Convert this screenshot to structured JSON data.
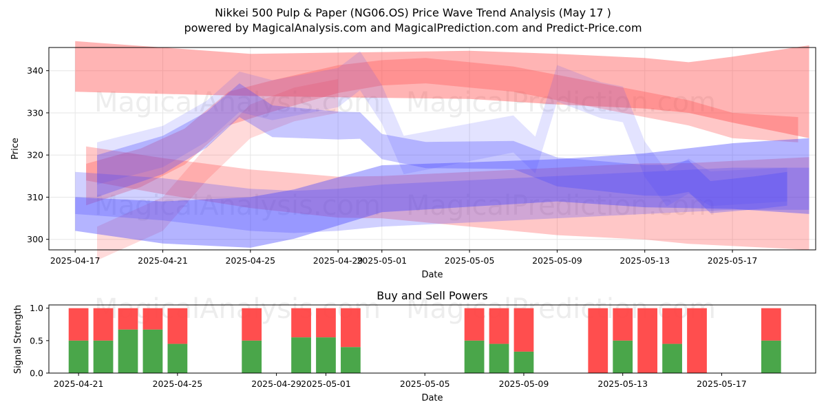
{
  "title_line1": "Nikkei 500 Pulp & Paper (NG06.OS) Price Wave Trend Analysis (May 17 )",
  "title_line2": "powered by MagicalAnalysis.com and MagicalPrediction.com and Predict-Price.com",
  "watermarks": [
    "MagicalAnalysis.com",
    "MagicalPrediction.com"
  ],
  "colors": {
    "red": "#ff4444",
    "blue": "#4444ff",
    "green": "#4aa64a",
    "grid": "#e6e6e6"
  },
  "chart_data": [
    {
      "type": "area",
      "title": "",
      "xlabel": "Date",
      "ylabel": "Price",
      "ylim": [
        297.5,
        345.5
      ],
      "xlim": [
        -1.2,
        33.8
      ],
      "grid": true,
      "date_origin": "2025-04-17",
      "x_ticks": [
        {
          "d": 0,
          "label": "2025-04-17"
        },
        {
          "d": 4,
          "label": "2025-04-21"
        },
        {
          "d": 8,
          "label": "2025-04-25"
        },
        {
          "d": 12,
          "label": "2025-04-29"
        },
        {
          "d": 14,
          "label": "2025-05-01"
        },
        {
          "d": 18,
          "label": "2025-05-05"
        },
        {
          "d": 22,
          "label": "2025-05-09"
        },
        {
          "d": 26,
          "label": "2025-05-13"
        },
        {
          "d": 30,
          "label": "2025-05-17"
        }
      ],
      "y_ticks": [
        300,
        310,
        320,
        330,
        340
      ],
      "series": [
        {
          "name": "red-wave-upper",
          "color": "red",
          "alpha": 0.4,
          "points": [
            [
              0,
              341
            ],
            [
              4,
              340
            ],
            [
              8,
              339
            ],
            [
              12,
              339
            ],
            [
              14,
              339
            ],
            [
              18,
              339
            ],
            [
              20,
              338.5
            ],
            [
              22,
              338
            ],
            [
              26,
              337
            ],
            [
              28,
              336
            ],
            [
              30,
              335.5
            ],
            [
              33.5,
              335
            ]
          ],
          "width": [
            [
              0,
              6
            ],
            [
              8,
              5
            ],
            [
              22,
              6
            ],
            [
              28,
              6
            ],
            [
              33.5,
              11
            ]
          ]
        },
        {
          "name": "red-wave-mid",
          "color": "red",
          "alpha": 0.3,
          "points": [
            [
              0.5,
              313
            ],
            [
              3,
              317
            ],
            [
              5,
              322
            ],
            [
              7,
              331
            ],
            [
              9,
              334
            ],
            [
              12,
              338
            ],
            [
              14,
              339.5
            ],
            [
              16,
              340
            ],
            [
              18,
              339
            ],
            [
              20,
              338
            ],
            [
              22,
              336
            ],
            [
              24,
              334
            ],
            [
              26,
              332
            ],
            [
              28,
              330
            ],
            [
              30,
              327
            ],
            [
              33,
              326
            ]
          ],
          "width": [
            [
              0,
              5
            ],
            [
              14,
              3
            ],
            [
              33,
              3
            ]
          ]
        },
        {
          "name": "red-wave-lower",
          "color": "red",
          "alpha": 0.3,
          "points": [
            [
              0.5,
              318
            ],
            [
              4,
              315
            ],
            [
              8,
              312
            ],
            [
              12,
              310
            ],
            [
              14,
              310
            ],
            [
              18,
              309.5
            ],
            [
              22,
              309
            ],
            [
              26,
              309
            ],
            [
              28,
              308.5
            ],
            [
              30,
              308.5
            ],
            [
              33.5,
              308.5
            ]
          ],
          "width": [
            [
              0,
              4
            ],
            [
              14,
              5
            ],
            [
              22,
              8
            ],
            [
              33.5,
              11
            ]
          ]
        },
        {
          "name": "red-rise",
          "color": "red",
          "alpha": 0.2,
          "points": [
            [
              1,
              299
            ],
            [
              4,
              306
            ],
            [
              6,
              318
            ],
            [
              8,
              328
            ],
            [
              10,
              332
            ],
            [
              12,
              334
            ]
          ],
          "width": [
            [
              1,
              4
            ],
            [
              12,
              4
            ]
          ]
        },
        {
          "name": "blue-wave-flat",
          "color": "blue",
          "alpha": 0.4,
          "points": [
            [
              0,
              306
            ],
            [
              4,
              304
            ],
            [
              8,
              304
            ],
            [
              10,
              306
            ],
            [
              12,
              309
            ],
            [
              14,
              312
            ],
            [
              18,
              313
            ],
            [
              22,
              314
            ],
            [
              26,
              314
            ],
            [
              30,
              315
            ],
            [
              33.5,
              315
            ]
          ],
          "width": [
            [
              0,
              4
            ],
            [
              8,
              6
            ],
            [
              22,
              5
            ],
            [
              33.5,
              9
            ]
          ]
        },
        {
          "name": "blue-wave-main",
          "color": "blue",
          "alpha": 0.3,
          "points": [
            [
              1,
              315
            ],
            [
              4,
              320
            ],
            [
              6,
              326
            ],
            [
              7.5,
              333
            ],
            [
              9,
              328
            ],
            [
              12,
              327
            ],
            [
              13,
              327
            ],
            [
              14,
              322
            ],
            [
              16,
              320
            ],
            [
              18,
              320
            ],
            [
              20,
              320
            ],
            [
              22,
              316
            ],
            [
              24,
              315
            ],
            [
              26,
              314
            ],
            [
              27,
              314
            ],
            [
              28,
              315
            ],
            [
              29,
              310
            ],
            [
              31,
              311
            ],
            [
              32.5,
              312
            ]
          ],
          "width": [
            [
              1,
              5
            ],
            [
              14,
              3
            ],
            [
              32.5,
              4
            ]
          ]
        },
        {
          "name": "blue-wave-alt",
          "color": "blue",
          "alpha": 0.15,
          "points": [
            [
              1,
              318
            ],
            [
              4,
              322
            ],
            [
              6,
              328
            ],
            [
              7.5,
              335
            ],
            [
              9,
              333
            ],
            [
              12,
              336
            ],
            [
              13,
              340
            ],
            [
              14,
              332
            ],
            [
              15,
              320
            ],
            [
              18,
              323
            ],
            [
              20,
              325
            ],
            [
              21,
              320
            ],
            [
              22,
              337
            ],
            [
              24,
              333
            ],
            [
              25,
              332
            ],
            [
              26,
              319
            ],
            [
              27,
              312
            ],
            [
              28,
              315
            ],
            [
              29,
              312
            ],
            [
              32.5,
              313
            ]
          ],
          "width": [
            [
              1,
              5
            ],
            [
              32.5,
              4
            ]
          ]
        },
        {
          "name": "purple-band",
          "color": "blue",
          "alpha": 0.25,
          "points": [
            [
              0,
              311
            ],
            [
              4,
              309.5
            ],
            [
              8,
              307
            ],
            [
              10,
              306.5
            ],
            [
              12,
              307
            ],
            [
              14,
              308
            ],
            [
              18,
              309
            ],
            [
              22,
              310
            ],
            [
              26,
              311
            ],
            [
              30,
              312
            ],
            [
              33.5,
              312
            ]
          ],
          "width": [
            [
              0,
              5
            ],
            [
              33.5,
              5
            ]
          ]
        }
      ]
    },
    {
      "type": "bar",
      "title": "Buy and Sell Powers",
      "xlabel": "Date",
      "ylabel": "Signal Strength",
      "ylim": [
        0,
        1.05
      ],
      "xlim": [
        -0.2,
        30.8
      ],
      "grid": false,
      "date_origin": "2025-04-20",
      "x_ticks": [
        {
          "d": 1,
          "label": "2025-04-21"
        },
        {
          "d": 5,
          "label": "2025-04-25"
        },
        {
          "d": 9,
          "label": "2025-04-29"
        },
        {
          "d": 11,
          "label": "2025-05-01"
        },
        {
          "d": 15,
          "label": "2025-05-05"
        },
        {
          "d": 19,
          "label": "2025-05-09"
        },
        {
          "d": 23,
          "label": "2025-05-13"
        },
        {
          "d": 27,
          "label": "2025-05-17"
        }
      ],
      "y_ticks": [
        0.0,
        0.5,
        1.0
      ],
      "y_tick_labels": [
        "0.0",
        "0.5",
        "1.0"
      ],
      "days": [
        1,
        2,
        3,
        4,
        5,
        8,
        10,
        11,
        12,
        17,
        18,
        19,
        22,
        23,
        24,
        25,
        26,
        29
      ],
      "buy": [
        0.5,
        0.5,
        0.67,
        0.67,
        0.45,
        0.5,
        0.55,
        0.55,
        0.4,
        0.5,
        0.45,
        0.33,
        0.0,
        0.5,
        0.0,
        0.45,
        0.0,
        0.5
      ],
      "total": [
        1,
        1,
        1,
        1,
        1,
        1,
        1,
        1,
        1,
        1,
        1,
        1,
        1,
        1,
        1,
        1,
        1,
        1
      ]
    }
  ]
}
